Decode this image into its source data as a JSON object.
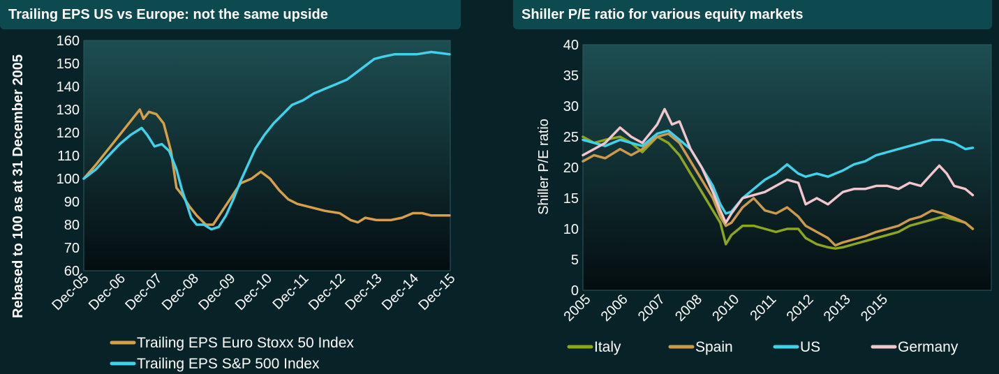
{
  "left_panel": {
    "title": "Trailing EPS US vs Europe: not the same upside"
  },
  "right_panel": {
    "title": "Shiller P/E ratio for various equity markets"
  },
  "chart_data": [
    {
      "type": "line",
      "title": "Trailing EPS US vs Europe: not the same upside",
      "ylabel": "Rebased to 100 as at 31 December 2005",
      "xlabel": "",
      "ylim": [
        60,
        160
      ],
      "yticks": [
        "60",
        "70",
        "80",
        "90",
        "100",
        "110",
        "120",
        "130",
        "140",
        "150",
        "160"
      ],
      "xlim": [
        2005.92,
        2015.92
      ],
      "x_tick_labels": [
        "Dec-05",
        "Dec-06",
        "Dec-07",
        "Dec-08",
        "Dec-09",
        "Dec-10",
        "Dec-11",
        "Dec-12",
        "Dec-13",
        "Dec-14",
        "Dec-15"
      ],
      "grid": false,
      "legend_position": "bottom",
      "series": [
        {
          "name": "Trailing EPS Euro Stoxx 50 Index",
          "color": "#d6a04b",
          "points": [
            [
              2005.92,
              100
            ],
            [
              2006.25,
              106
            ],
            [
              2006.5,
              111
            ],
            [
              2006.75,
              116
            ],
            [
              2007.0,
              121
            ],
            [
              2007.25,
              126
            ],
            [
              2007.45,
              130
            ],
            [
              2007.55,
              126
            ],
            [
              2007.7,
              129
            ],
            [
              2007.9,
              128
            ],
            [
              2008.1,
              124
            ],
            [
              2008.3,
              112
            ],
            [
              2008.45,
              96
            ],
            [
              2008.6,
              93
            ],
            [
              2008.8,
              88
            ],
            [
              2009.0,
              84
            ],
            [
              2009.25,
              80
            ],
            [
              2009.45,
              80
            ],
            [
              2009.7,
              86
            ],
            [
              2009.95,
              92
            ],
            [
              2010.2,
              98
            ],
            [
              2010.5,
              100
            ],
            [
              2010.75,
              103
            ],
            [
              2011.0,
              100
            ],
            [
              2011.25,
              95
            ],
            [
              2011.5,
              91
            ],
            [
              2011.75,
              89
            ],
            [
              2012.0,
              88
            ],
            [
              2012.5,
              86
            ],
            [
              2012.9,
              85
            ],
            [
              2013.2,
              82
            ],
            [
              2013.4,
              81
            ],
            [
              2013.6,
              83
            ],
            [
              2013.9,
              82
            ],
            [
              2014.3,
              82
            ],
            [
              2014.6,
              83
            ],
            [
              2014.9,
              85
            ],
            [
              2015.15,
              85
            ],
            [
              2015.4,
              84
            ],
            [
              2015.9,
              84
            ]
          ]
        },
        {
          "name": "Trailing EPS S&P 500 Index",
          "color": "#3ed2ec",
          "points": [
            [
              2005.92,
              100
            ],
            [
              2006.25,
              104
            ],
            [
              2006.6,
              110
            ],
            [
              2006.9,
              115
            ],
            [
              2007.2,
              119
            ],
            [
              2007.5,
              122
            ],
            [
              2007.65,
              119
            ],
            [
              2007.85,
              114
            ],
            [
              2008.05,
              115
            ],
            [
              2008.25,
              112
            ],
            [
              2008.45,
              104
            ],
            [
              2008.6,
              95
            ],
            [
              2008.75,
              88
            ],
            [
              2008.85,
              83
            ],
            [
              2009.0,
              80
            ],
            [
              2009.2,
              80
            ],
            [
              2009.4,
              78
            ],
            [
              2009.6,
              79
            ],
            [
              2009.8,
              84
            ],
            [
              2010.0,
              91
            ],
            [
              2010.2,
              99
            ],
            [
              2010.4,
              106
            ],
            [
              2010.6,
              113
            ],
            [
              2010.85,
              119
            ],
            [
              2011.1,
              124
            ],
            [
              2011.35,
              128
            ],
            [
              2011.6,
              132
            ],
            [
              2011.9,
              134
            ],
            [
              2012.2,
              137
            ],
            [
              2012.5,
              139
            ],
            [
              2012.8,
              141
            ],
            [
              2013.1,
              143
            ],
            [
              2013.35,
              146
            ],
            [
              2013.6,
              149
            ],
            [
              2013.85,
              152
            ],
            [
              2014.1,
              153
            ],
            [
              2014.4,
              154
            ],
            [
              2014.7,
              154
            ],
            [
              2015.0,
              154
            ],
            [
              2015.4,
              155
            ],
            [
              2015.9,
              154
            ]
          ]
        }
      ]
    },
    {
      "type": "line",
      "title": "Shiller P/E ratio for various equity markets",
      "ylabel": "Shiller P/E ratio",
      "xlabel": "",
      "ylim": [
        0,
        40
      ],
      "yticks": [
        "0",
        "5",
        "10",
        "15",
        "20",
        "25",
        "30",
        "35",
        "40"
      ],
      "xlim": [
        2005.0,
        2016.0
      ],
      "x_ticks": [
        {
          "label": "2005",
          "x": 2005.0
        },
        {
          "label": "2006",
          "x": 2006.0
        },
        {
          "label": "2007",
          "x": 2007.0
        },
        {
          "label": "2008",
          "x": 2008.0
        },
        {
          "label": "2010",
          "x": 2009.0
        },
        {
          "label": "2011",
          "x": 2010.0
        },
        {
          "label": "2012",
          "x": 2011.0
        },
        {
          "label": "2013",
          "x": 2012.0
        },
        {
          "label": "2015",
          "x": 2013.0
        }
      ],
      "grid": false,
      "legend_position": "bottom",
      "series": [
        {
          "name": "Italy",
          "color": "#8ca61d",
          "points": [
            [
              2005.0,
              25
            ],
            [
              2005.3,
              24
            ],
            [
              2005.6,
              24.5
            ],
            [
              2006.0,
              25
            ],
            [
              2006.3,
              24
            ],
            [
              2006.6,
              22.5
            ],
            [
              2007.0,
              25
            ],
            [
              2007.3,
              24
            ],
            [
              2007.6,
              22
            ],
            [
              2007.9,
              19
            ],
            [
              2008.2,
              16
            ],
            [
              2008.5,
              13
            ],
            [
              2008.7,
              11
            ],
            [
              2008.85,
              7.5
            ],
            [
              2009.0,
              9
            ],
            [
              2009.3,
              10.5
            ],
            [
              2009.6,
              10.5
            ],
            [
              2009.9,
              10
            ],
            [
              2010.2,
              9.5
            ],
            [
              2010.5,
              10
            ],
            [
              2010.8,
              10
            ],
            [
              2011.0,
              8.5
            ],
            [
              2011.3,
              7.5
            ],
            [
              2011.6,
              7
            ],
            [
              2011.8,
              6.8
            ],
            [
              2012.0,
              7
            ],
            [
              2012.3,
              7.5
            ],
            [
              2012.6,
              8
            ],
            [
              2012.9,
              8.5
            ],
            [
              2013.2,
              9
            ],
            [
              2013.5,
              9.5
            ],
            [
              2013.8,
              10.5
            ],
            [
              2014.1,
              11
            ],
            [
              2014.4,
              11.5
            ],
            [
              2014.7,
              12
            ],
            [
              2015.0,
              11.5
            ],
            [
              2015.3,
              11
            ],
            [
              2015.5,
              10
            ]
          ]
        },
        {
          "name": "Spain",
          "color": "#cd9a4c",
          "points": [
            [
              2005.0,
              21
            ],
            [
              2005.3,
              22
            ],
            [
              2005.6,
              21.5
            ],
            [
              2006.0,
              23
            ],
            [
              2006.3,
              22
            ],
            [
              2006.6,
              23
            ],
            [
              2007.0,
              25
            ],
            [
              2007.3,
              25.5
            ],
            [
              2007.6,
              24
            ],
            [
              2007.9,
              21
            ],
            [
              2008.2,
              18
            ],
            [
              2008.5,
              15
            ],
            [
              2008.7,
              12
            ],
            [
              2008.85,
              10.5
            ],
            [
              2009.0,
              11
            ],
            [
              2009.3,
              13.5
            ],
            [
              2009.6,
              15
            ],
            [
              2009.9,
              13
            ],
            [
              2010.2,
              12.5
            ],
            [
              2010.5,
              13.5
            ],
            [
              2010.8,
              12
            ],
            [
              2011.0,
              10.5
            ],
            [
              2011.3,
              9.5
            ],
            [
              2011.6,
              8.5
            ],
            [
              2011.8,
              7.3
            ],
            [
              2012.0,
              7.8
            ],
            [
              2012.3,
              8.3
            ],
            [
              2012.6,
              8.8
            ],
            [
              2012.9,
              9.5
            ],
            [
              2013.2,
              10
            ],
            [
              2013.5,
              10.5
            ],
            [
              2013.8,
              11.5
            ],
            [
              2014.1,
              12
            ],
            [
              2014.4,
              13
            ],
            [
              2014.7,
              12.5
            ],
            [
              2015.0,
              11.8
            ],
            [
              2015.3,
              11
            ],
            [
              2015.5,
              10
            ]
          ]
        },
        {
          "name": "US",
          "color": "#3ed2ec",
          "points": [
            [
              2005.0,
              24.5
            ],
            [
              2005.3,
              24
            ],
            [
              2005.6,
              23.5
            ],
            [
              2006.0,
              24.5
            ],
            [
              2006.3,
              24
            ],
            [
              2006.6,
              23.5
            ],
            [
              2007.0,
              25.5
            ],
            [
              2007.3,
              26
            ],
            [
              2007.6,
              24.5
            ],
            [
              2007.9,
              23
            ],
            [
              2008.2,
              20
            ],
            [
              2008.5,
              17
            ],
            [
              2008.7,
              14
            ],
            [
              2008.85,
              12.5
            ],
            [
              2009.0,
              12.8
            ],
            [
              2009.3,
              15
            ],
            [
              2009.6,
              16.5
            ],
            [
              2009.9,
              18
            ],
            [
              2010.2,
              19
            ],
            [
              2010.5,
              20.5
            ],
            [
              2010.8,
              19
            ],
            [
              2011.0,
              18.5
            ],
            [
              2011.3,
              19
            ],
            [
              2011.6,
              18.5
            ],
            [
              2011.8,
              19
            ],
            [
              2012.0,
              19.5
            ],
            [
              2012.3,
              20.5
            ],
            [
              2012.6,
              21
            ],
            [
              2012.9,
              22
            ],
            [
              2013.2,
              22.5
            ],
            [
              2013.5,
              23
            ],
            [
              2013.8,
              23.5
            ],
            [
              2014.1,
              24
            ],
            [
              2014.4,
              24.5
            ],
            [
              2014.7,
              24.5
            ],
            [
              2015.0,
              24
            ],
            [
              2015.3,
              23
            ],
            [
              2015.5,
              23.2
            ]
          ]
        },
        {
          "name": "Germany",
          "color": "#f2c6cc",
          "points": [
            [
              2005.0,
              22
            ],
            [
              2005.3,
              23
            ],
            [
              2005.6,
              24
            ],
            [
              2006.0,
              26.5
            ],
            [
              2006.3,
              25
            ],
            [
              2006.6,
              24
            ],
            [
              2007.0,
              27
            ],
            [
              2007.2,
              29.5
            ],
            [
              2007.4,
              27
            ],
            [
              2007.6,
              27.5
            ],
            [
              2007.9,
              23
            ],
            [
              2008.2,
              20
            ],
            [
              2008.5,
              16
            ],
            [
              2008.7,
              13
            ],
            [
              2008.85,
              11
            ],
            [
              2009.0,
              12.5
            ],
            [
              2009.3,
              15
            ],
            [
              2009.6,
              15.5
            ],
            [
              2009.9,
              16
            ],
            [
              2010.2,
              17
            ],
            [
              2010.5,
              18
            ],
            [
              2010.8,
              17.5
            ],
            [
              2011.0,
              14
            ],
            [
              2011.3,
              15
            ],
            [
              2011.6,
              14
            ],
            [
              2011.8,
              15
            ],
            [
              2012.0,
              16
            ],
            [
              2012.3,
              16.5
            ],
            [
              2012.6,
              16.5
            ],
            [
              2012.9,
              17
            ],
            [
              2013.2,
              17
            ],
            [
              2013.5,
              16.5
            ],
            [
              2013.8,
              17.5
            ],
            [
              2014.1,
              17
            ],
            [
              2014.4,
              19
            ],
            [
              2014.6,
              20.3
            ],
            [
              2014.8,
              19
            ],
            [
              2015.0,
              17
            ],
            [
              2015.3,
              16.5
            ],
            [
              2015.5,
              15.5
            ]
          ]
        }
      ]
    }
  ]
}
